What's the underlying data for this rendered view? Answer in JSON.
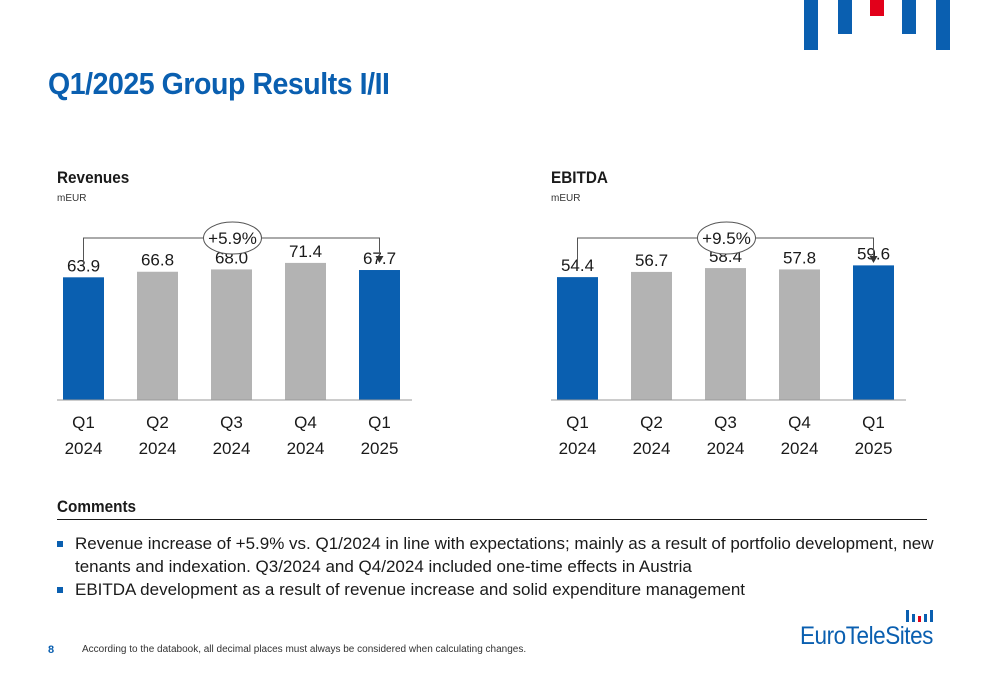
{
  "page": {
    "title": "Q1/2025 Group Results I/II",
    "page_number": "8",
    "footnote": "According to the databook, all decimal places must always be considered when calculating changes.",
    "logo_text": "EuroTeleSites"
  },
  "colors": {
    "accent_blue": "#0a5fb0",
    "bar_grey": "#b3b3b3",
    "logo_red": "#e2001a"
  },
  "comments": {
    "heading": "Comments",
    "items": [
      "Revenue increase of +5.9% vs. Q1/2024 in line with expectations; mainly as a result of portfolio development, new tenants and indexation. Q3/2024 and Q4/2024 included one-time effects in Austria",
      "EBITDA development as a result of revenue increase and solid expenditure management"
    ]
  },
  "chart_data": [
    {
      "type": "bar",
      "title": "Revenues",
      "unit": "mEUR",
      "categories": [
        [
          "Q1",
          "2024"
        ],
        [
          "Q2",
          "2024"
        ],
        [
          "Q3",
          "2024"
        ],
        [
          "Q4",
          "2024"
        ],
        [
          "Q1",
          "2025"
        ]
      ],
      "values": [
        63.9,
        66.8,
        68.0,
        71.4,
        67.7
      ],
      "labels": [
        "63.9",
        "66.8",
        "68.0",
        "71.4",
        "67.7"
      ],
      "highlight": [
        true,
        false,
        false,
        false,
        true
      ],
      "change_label": "+5.9%",
      "change_from": 0,
      "change_to": 4,
      "ylim": [
        0,
        100
      ]
    },
    {
      "type": "bar",
      "title": "EBITDA",
      "unit": "mEUR",
      "categories": [
        [
          "Q1",
          "2024"
        ],
        [
          "Q2",
          "2024"
        ],
        [
          "Q3",
          "2024"
        ],
        [
          "Q4",
          "2024"
        ],
        [
          "Q1",
          "2025"
        ]
      ],
      "values": [
        54.4,
        56.7,
        58.4,
        57.8,
        59.6
      ],
      "labels": [
        "54.4",
        "56.7",
        "58.4",
        "57.8",
        "59.6"
      ],
      "highlight": [
        true,
        false,
        false,
        false,
        true
      ],
      "change_label": "+9.5%",
      "change_from": 0,
      "change_to": 4,
      "ylim": [
        0,
        85
      ]
    }
  ]
}
